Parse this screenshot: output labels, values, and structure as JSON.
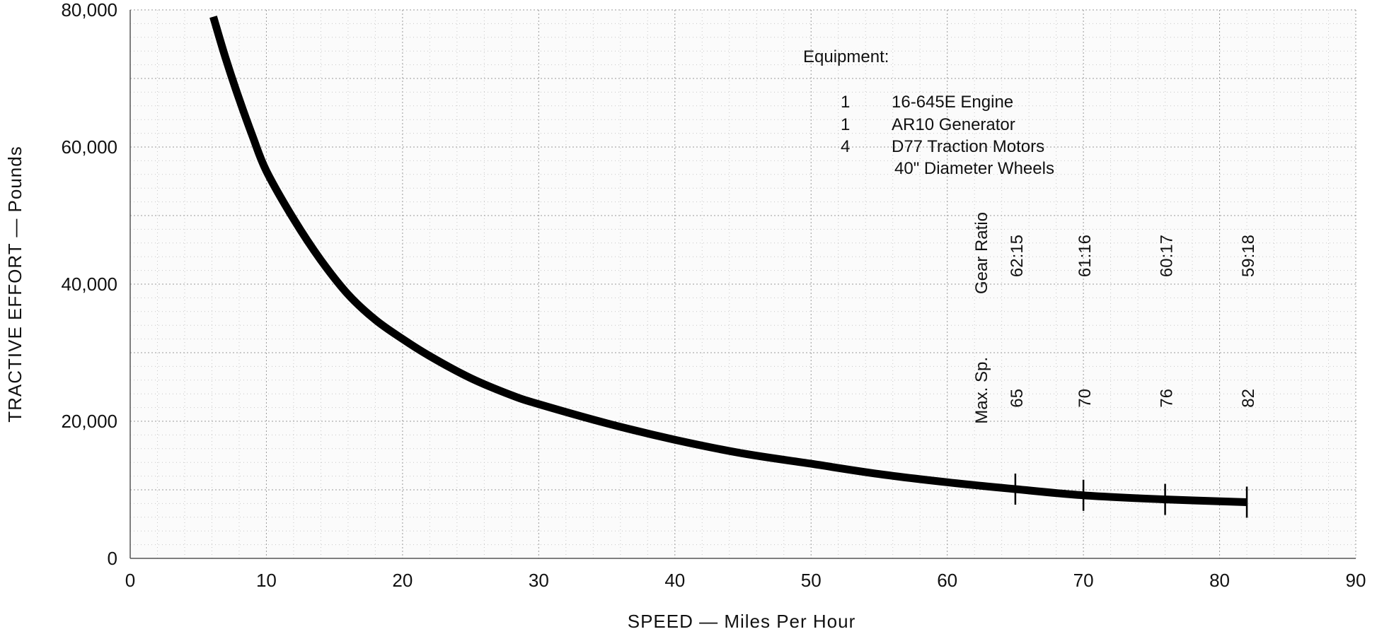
{
  "chart_data": {
    "type": "line",
    "title": "",
    "xlabel": "SPEED — Miles Per Hour",
    "ylabel": "TRACTIVE EFFORT — Pounds",
    "xlim": [
      0,
      90
    ],
    "ylim": [
      0,
      80000
    ],
    "x_ticks": [
      "0",
      "10",
      "20",
      "30",
      "40",
      "50",
      "60",
      "70",
      "80",
      "90"
    ],
    "y_ticks": [
      "0",
      "20,000",
      "40,000",
      "60,000",
      "80,000"
    ],
    "grid": true,
    "series": [
      {
        "x": [
          6.1,
          7,
          8,
          9,
          10,
          12,
          14,
          16,
          18,
          20,
          22,
          25,
          28,
          30,
          35,
          40,
          45,
          50,
          55,
          60,
          65,
          70,
          76,
          82
        ],
        "y": [
          79000,
          73000,
          67000,
          61500,
          56500,
          49500,
          43500,
          38500,
          34800,
          32000,
          29500,
          26300,
          23800,
          22500,
          19700,
          17300,
          15300,
          13800,
          12300,
          11100,
          10100,
          9200,
          8600,
          8200
        ]
      }
    ],
    "markers": [
      {
        "speed": 65,
        "gear_ratio": "62:15",
        "max_speed": "65"
      },
      {
        "speed": 70,
        "gear_ratio": "61:16",
        "max_speed": "70"
      },
      {
        "speed": 76,
        "gear_ratio": "60:17",
        "max_speed": "76"
      },
      {
        "speed": 82,
        "gear_ratio": "59:18",
        "max_speed": "82"
      }
    ],
    "gear_ratio_label": "Gear Ratio",
    "max_speed_label": "Max. Sp.",
    "equipment": {
      "heading": "Equipment:",
      "items": [
        {
          "qty": "1",
          "desc": "16-645E Engine"
        },
        {
          "qty": "1",
          "desc": "AR10 Generator"
        },
        {
          "qty": "4",
          "desc": "D77 Traction Motors"
        },
        {
          "qty": "",
          "desc": "40\" Diameter Wheels"
        }
      ]
    }
  }
}
